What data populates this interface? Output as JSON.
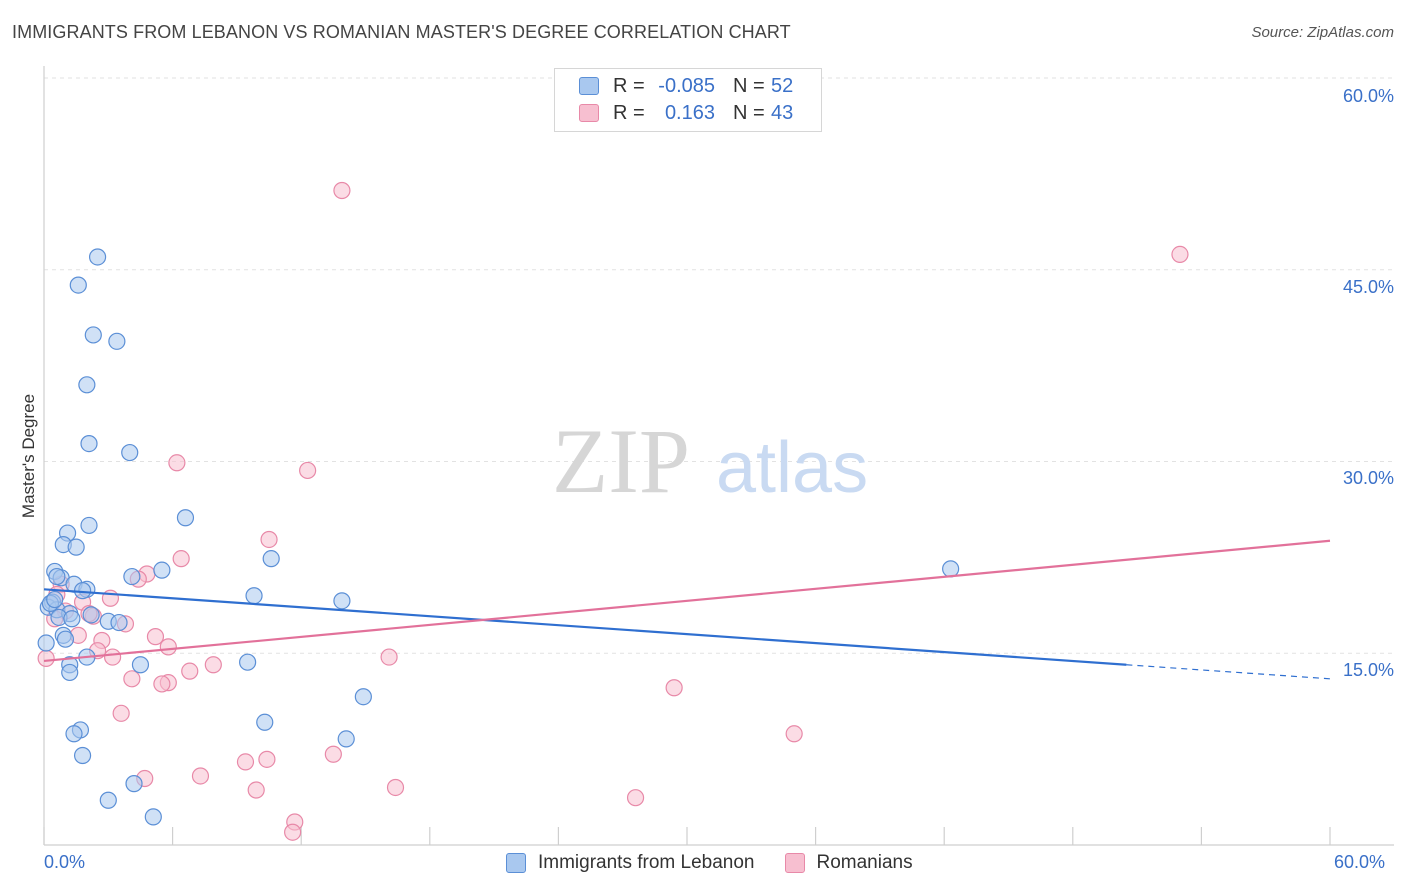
{
  "header": {
    "title": "IMMIGRANTS FROM LEBANON VS ROMANIAN MASTER'S DEGREE CORRELATION CHART",
    "source": "Source: ZipAtlas.com"
  },
  "watermark": {
    "zip": "ZIP",
    "atlas": "atlas"
  },
  "legend_top": {
    "rows": [
      {
        "r_label": "R =",
        "r_value": "-0.085",
        "n_label": "N =",
        "n_value": "52"
      },
      {
        "r_label": "R =",
        "r_value": "0.163",
        "n_label": "N =",
        "n_value": "43"
      }
    ]
  },
  "colors": {
    "blue_fill": "#a9c8ef",
    "blue_stroke": "#5b8fd6",
    "blue_line": "#2f6fd0",
    "pink_fill": "#f7bfd0",
    "pink_stroke": "#e889a8",
    "pink_line": "#e2719a",
    "grid": "#e2e2e2",
    "tick_text": "#3a70c8"
  },
  "chart_data": {
    "type": "scatter",
    "title": "IMMIGRANTS FROM LEBANON VS ROMANIAN MASTER'S DEGREE CORRELATION CHART",
    "xlabel": "",
    "ylabel": "Master's Degree",
    "xlim": [
      0,
      60
    ],
    "ylim": [
      0,
      60
    ],
    "x_tick_labels": [
      "0.0%",
      "60.0%"
    ],
    "y_ticks": [
      15,
      30,
      45,
      60
    ],
    "y_tick_labels": [
      "15.0%",
      "30.0%",
      "45.0%",
      "60.0%"
    ],
    "legend_position": "bottom",
    "series": [
      {
        "name": "Immigrants from Lebanon",
        "color": "blue",
        "R": -0.085,
        "N": 52,
        "trend": {
          "x0": 0,
          "y0": 20.0,
          "x1": 50.5,
          "y1": 14.1,
          "dash_to_x": 60,
          "dash_y": 13.0
        },
        "points": [
          [
            2.5,
            46.0
          ],
          [
            1.6,
            43.8
          ],
          [
            2.3,
            39.9
          ],
          [
            3.4,
            39.4
          ],
          [
            2.0,
            36.0
          ],
          [
            2.1,
            31.4
          ],
          [
            4.0,
            30.7
          ],
          [
            6.6,
            25.6
          ],
          [
            2.1,
            25.0
          ],
          [
            1.1,
            24.4
          ],
          [
            0.9,
            23.5
          ],
          [
            1.5,
            23.3
          ],
          [
            10.6,
            22.4
          ],
          [
            0.5,
            21.4
          ],
          [
            5.5,
            21.5
          ],
          [
            4.1,
            21.0
          ],
          [
            0.8,
            20.9
          ],
          [
            1.4,
            20.4
          ],
          [
            2.0,
            20.0
          ],
          [
            1.8,
            19.9
          ],
          [
            9.8,
            19.5
          ],
          [
            13.9,
            19.1
          ],
          [
            0.4,
            19.0
          ],
          [
            0.2,
            18.6
          ],
          [
            0.6,
            18.4
          ],
          [
            1.2,
            18.1
          ],
          [
            0.7,
            17.8
          ],
          [
            1.3,
            17.7
          ],
          [
            3.0,
            17.5
          ],
          [
            3.5,
            17.4
          ],
          [
            0.9,
            16.4
          ],
          [
            1.0,
            16.1
          ],
          [
            0.1,
            15.8
          ],
          [
            2.0,
            14.7
          ],
          [
            4.5,
            14.1
          ],
          [
            9.5,
            14.3
          ],
          [
            1.2,
            14.1
          ],
          [
            1.2,
            13.5
          ],
          [
            14.9,
            11.6
          ],
          [
            10.3,
            9.6
          ],
          [
            1.7,
            9.0
          ],
          [
            1.4,
            8.7
          ],
          [
            14.1,
            8.3
          ],
          [
            1.8,
            7.0
          ],
          [
            4.2,
            4.8
          ],
          [
            3.0,
            3.5
          ],
          [
            5.1,
            2.2
          ],
          [
            42.3,
            21.6
          ],
          [
            0.3,
            18.9
          ],
          [
            0.5,
            19.2
          ],
          [
            2.2,
            18.0
          ],
          [
            0.6,
            21.0
          ]
        ]
      },
      {
        "name": "Romanians",
        "color": "pink",
        "R": 0.163,
        "N": 43,
        "trend": {
          "x0": 0,
          "y0": 14.4,
          "x1": 60,
          "y1": 23.8
        },
        "points": [
          [
            13.9,
            51.2
          ],
          [
            53.0,
            46.2
          ],
          [
            6.2,
            29.9
          ],
          [
            12.3,
            29.3
          ],
          [
            10.5,
            23.9
          ],
          [
            6.4,
            22.4
          ],
          [
            4.8,
            21.2
          ],
          [
            4.4,
            20.8
          ],
          [
            0.8,
            20.4
          ],
          [
            0.6,
            19.6
          ],
          [
            3.1,
            19.3
          ],
          [
            1.8,
            19.0
          ],
          [
            2.3,
            17.9
          ],
          [
            3.8,
            17.3
          ],
          [
            2.1,
            18.1
          ],
          [
            1.0,
            18.3
          ],
          [
            0.5,
            17.7
          ],
          [
            2.7,
            16.0
          ],
          [
            5.2,
            16.3
          ],
          [
            1.6,
            16.4
          ],
          [
            5.8,
            15.5
          ],
          [
            2.5,
            15.2
          ],
          [
            3.2,
            14.7
          ],
          [
            16.1,
            14.7
          ],
          [
            0.1,
            14.6
          ],
          [
            7.9,
            14.1
          ],
          [
            6.8,
            13.6
          ],
          [
            4.1,
            13.0
          ],
          [
            5.8,
            12.7
          ],
          [
            5.5,
            12.6
          ],
          [
            29.4,
            12.3
          ],
          [
            3.6,
            10.3
          ],
          [
            35.0,
            8.7
          ],
          [
            13.5,
            7.1
          ],
          [
            10.4,
            6.7
          ],
          [
            9.4,
            6.5
          ],
          [
            4.7,
            5.2
          ],
          [
            7.3,
            5.4
          ],
          [
            16.4,
            4.5
          ],
          [
            9.9,
            4.3
          ],
          [
            27.6,
            3.7
          ],
          [
            11.7,
            1.8
          ],
          [
            11.6,
            1.0
          ]
        ]
      }
    ]
  }
}
